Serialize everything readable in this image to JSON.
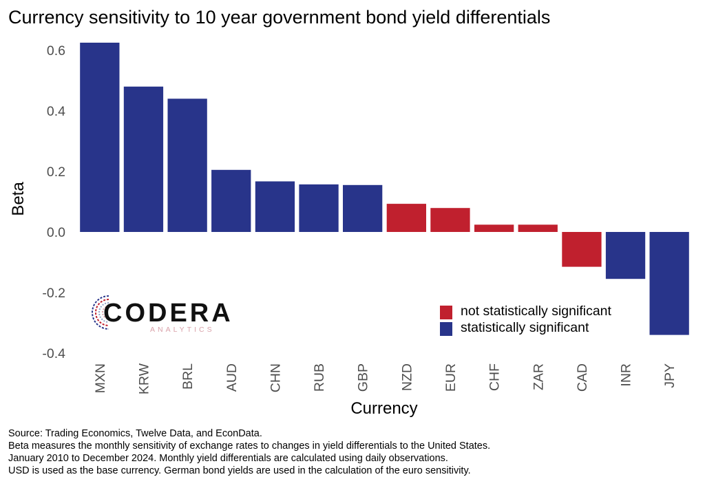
{
  "title": "Currency sensitivity to 10 year government bond yield differentials",
  "colors": {
    "significant": "#28348a",
    "not_significant": "#c0202e",
    "axis_text": "#4d4d4d"
  },
  "logo": {
    "word": "CODERA",
    "subtitle": "ANALYTICS"
  },
  "legend": [
    {
      "label": "not statistically significant",
      "color": "#c0202e"
    },
    {
      "label": "statistically significant",
      "color": "#28348a"
    }
  ],
  "chart_data": {
    "type": "bar",
    "title": "Currency sensitivity to 10 year government bond yield differentials",
    "xlabel": "Currency",
    "ylabel": "Beta",
    "ylim": [
      -0.4,
      0.65
    ],
    "yticks": [
      0.6,
      0.4,
      0.2,
      0.0,
      -0.2,
      -0.4
    ],
    "ytick_labels": [
      "0.6",
      "0.4",
      "0.2",
      "0.0",
      "-0.2",
      "-0.4"
    ],
    "grid": false,
    "legend_position": "bottom-right",
    "categories": [
      "MXN",
      "KRW",
      "BRL",
      "AUD",
      "CHN",
      "RUB",
      "GBP",
      "NZD",
      "EUR",
      "CHF",
      "ZAR",
      "CAD",
      "INR",
      "JPY"
    ],
    "values": [
      0.625,
      0.48,
      0.44,
      0.205,
      0.167,
      0.157,
      0.155,
      0.093,
      0.079,
      0.024,
      0.024,
      -0.115,
      -0.155,
      -0.34
    ],
    "significance": [
      "statistically significant",
      "statistically significant",
      "statistically significant",
      "statistically significant",
      "statistically significant",
      "statistically significant",
      "statistically significant",
      "not statistically significant",
      "not statistically significant",
      "not statistically significant",
      "not statistically significant",
      "not statistically significant",
      "statistically significant",
      "statistically significant"
    ]
  },
  "footnotes": [
    "Source: Trading Economics, Twelve Data, and EconData.",
    "Beta measures the monthly sensitivity of exchange rates to changes in yield differentials to the United States.",
    "January 2010 to December 2024. Monthly yield differentials are calculated using daily observations.",
    "USD is used as the base currency. German bond yields are used in the calculation of the euro sensitivity."
  ]
}
